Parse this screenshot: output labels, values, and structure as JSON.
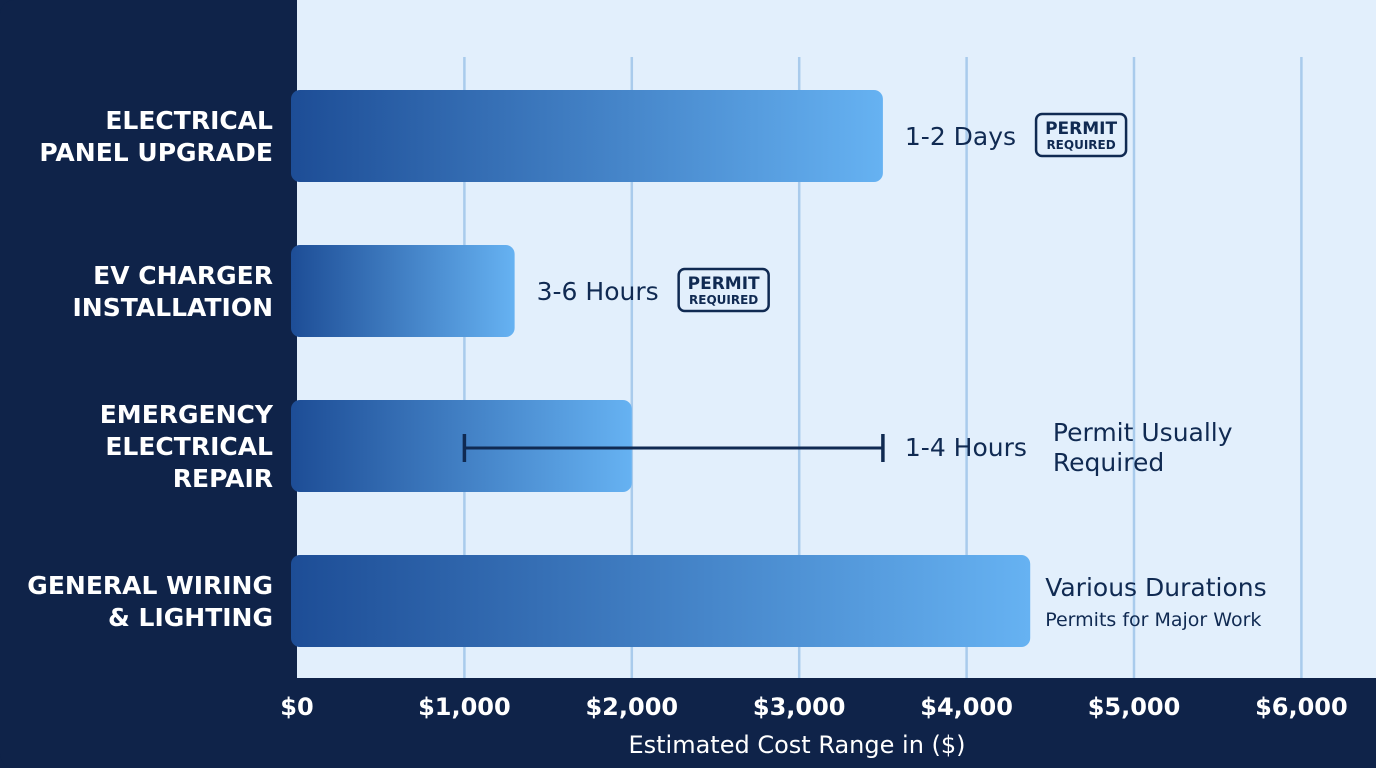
{
  "colors": {
    "frame": "#0f2349",
    "plot_bg": "#e2effc",
    "grid": "#a9cbec",
    "bar_start": "#1d4d96",
    "bar_end": "#66b2f2",
    "annotation": "#102a52"
  },
  "chart_data": {
    "type": "bar",
    "orientation": "horizontal",
    "xlabel": "Estimated Cost Range in ($)",
    "ylabel": "",
    "xlim": [
      0,
      6000
    ],
    "x_ticks": [
      0,
      1000,
      2000,
      3000,
      4000,
      5000,
      6000
    ],
    "x_tick_labels": [
      "$0",
      "$1,000",
      "$2,000",
      "$3,000",
      "$4,000",
      "$5,000",
      "$6,000"
    ],
    "grid": true,
    "categories": [
      {
        "label_lines": [
          "ELECTRICAL",
          "PANEL UPGRADE"
        ],
        "value": 3500,
        "duration": "1-2 Days",
        "permit": [
          "PERMIT",
          "REQUIRED"
        ],
        "permit_style": "badge"
      },
      {
        "label_lines": [
          "EV CHARGER",
          "INSTALLATION"
        ],
        "value": 1300,
        "duration": "3-6 Hours",
        "permit": [
          "PERMIT",
          "REQUIRED"
        ],
        "permit_style": "badge"
      },
      {
        "label_lines": [
          "EMERGENCY",
          "ELECTRICAL",
          "REPAIR"
        ],
        "value": 2000,
        "range": [
          1000,
          3500
        ],
        "duration": "1-4 Hours",
        "permit": [
          "Permit Usually",
          "Required"
        ],
        "permit_style": "text"
      },
      {
        "label_lines": [
          "GENERAL WIRING",
          "& LIGHTING"
        ],
        "value": 4380,
        "duration": "Various Durations",
        "permit": [
          "Permits for Major Work"
        ],
        "permit_style": "subtext"
      }
    ]
  }
}
